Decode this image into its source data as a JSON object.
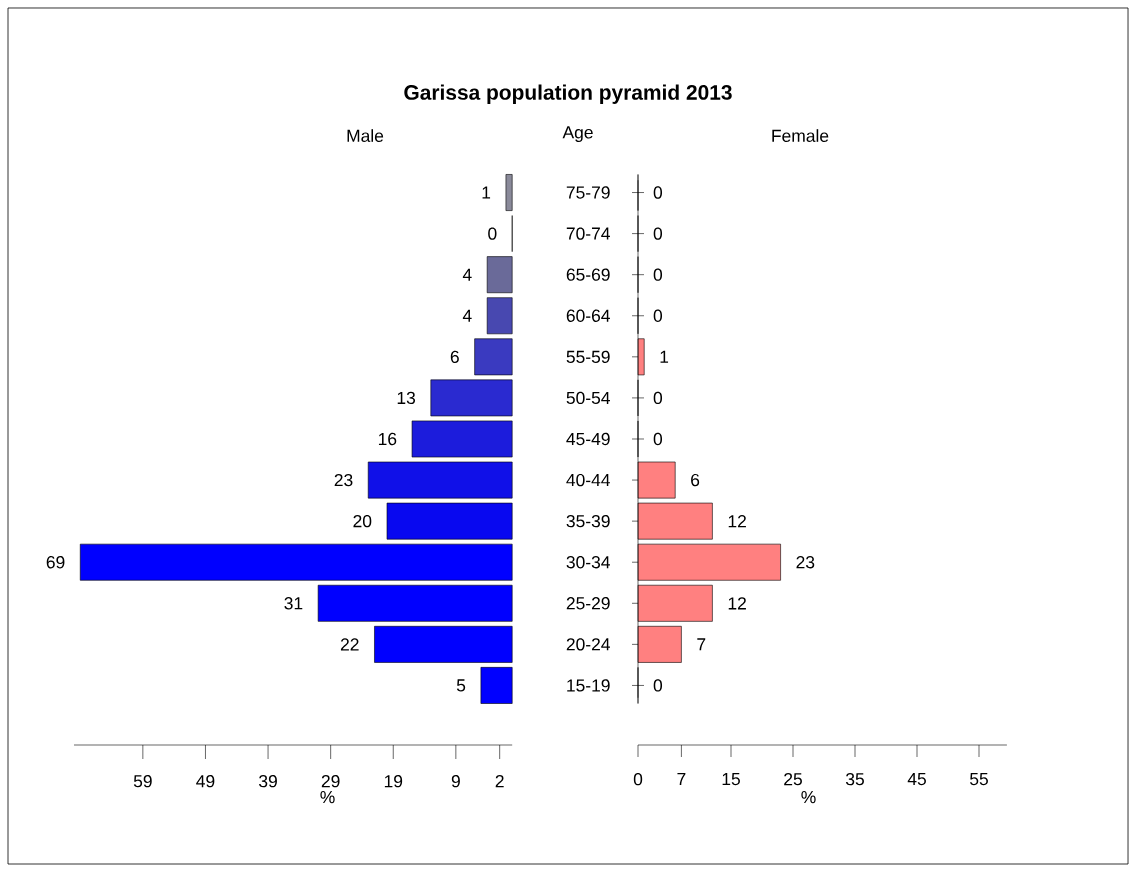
{
  "chart_data": [
    {
      "type": "bar",
      "orientation": "horizontal",
      "title": "Garissa population pyramid 2013",
      "subtitle": "Male",
      "ylabel": "Age",
      "xlabel": "%",
      "categories": [
        "75-79",
        "70-74",
        "65-69",
        "60-64",
        "55-59",
        "50-54",
        "45-49",
        "40-44",
        "35-39",
        "30-34",
        "25-29",
        "20-24",
        "15-19"
      ],
      "values": [
        1,
        0,
        4,
        4,
        6,
        13,
        16,
        23,
        20,
        69,
        31,
        22,
        5
      ],
      "colors": [
        "#8a8a9a",
        "#7a7a90",
        "#6a6a99",
        "#4848b0",
        "#3a3ac0",
        "#2a2ad0",
        "#1c1cdc",
        "#1010e8",
        "#0808f0",
        "#0000ff",
        "#0000ff",
        "#0000ff",
        "#0000ff"
      ],
      "xlim": [
        70,
        0
      ],
      "xticks": [
        59,
        49,
        39,
        29,
        19,
        9,
        2
      ],
      "data_labels": true
    },
    {
      "type": "bar",
      "orientation": "horizontal",
      "subtitle": "Female",
      "xlabel": "%",
      "values": [
        0,
        0,
        0,
        0,
        1,
        0,
        0,
        6,
        12,
        23,
        12,
        7,
        0
      ],
      "colors": [
        "#ff8080",
        "#ff8080",
        "#ff8080",
        "#ff8080",
        "#ff8080",
        "#ff8080",
        "#ff8080",
        "#ff8080",
        "#ff8080",
        "#ff8080",
        "#ff8080",
        "#ff8080",
        "#ff8080"
      ],
      "xlim": [
        0,
        59.5
      ],
      "xticks": [
        0,
        7,
        15,
        25,
        35,
        45,
        55
      ],
      "data_labels": true,
      "tick_labels": "x"
    }
  ]
}
